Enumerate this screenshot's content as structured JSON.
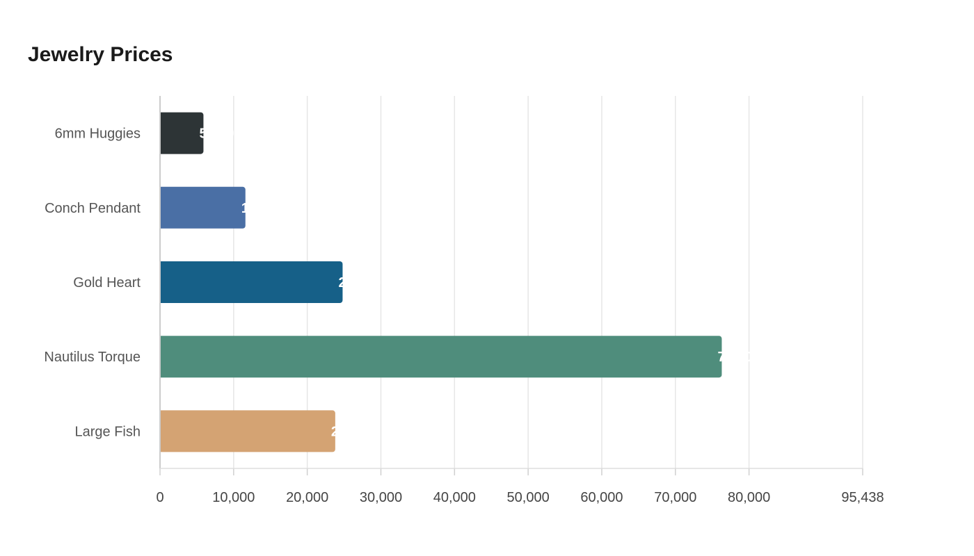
{
  "chart_data": {
    "type": "bar",
    "orientation": "horizontal",
    "title": "Jewelry Prices",
    "xlabel": "",
    "ylabel": "",
    "categories": [
      "6mm Huggies",
      "Conch Pendant",
      "Gold Heart",
      "Nautilus Torque",
      "Large Fish"
    ],
    "values": [
      5900,
      11600,
      24800,
      76300,
      23800
    ],
    "colors": [
      "#2d3436",
      "#4a6fa5",
      "#166088",
      "#4f8d7c",
      "#d4a373"
    ],
    "xlim": [
      0,
      95438
    ],
    "x_ticks": [
      0,
      10000,
      20000,
      30000,
      40000,
      50000,
      60000,
      70000,
      80000,
      95438
    ],
    "x_tick_labels": [
      "0",
      "10,000",
      "20,000",
      "30,000",
      "40,000",
      "50,000",
      "60,000",
      "70,000",
      "80,000",
      "95,438"
    ],
    "grid": true,
    "legend": "none",
    "data_label_color": "#ffffff"
  }
}
